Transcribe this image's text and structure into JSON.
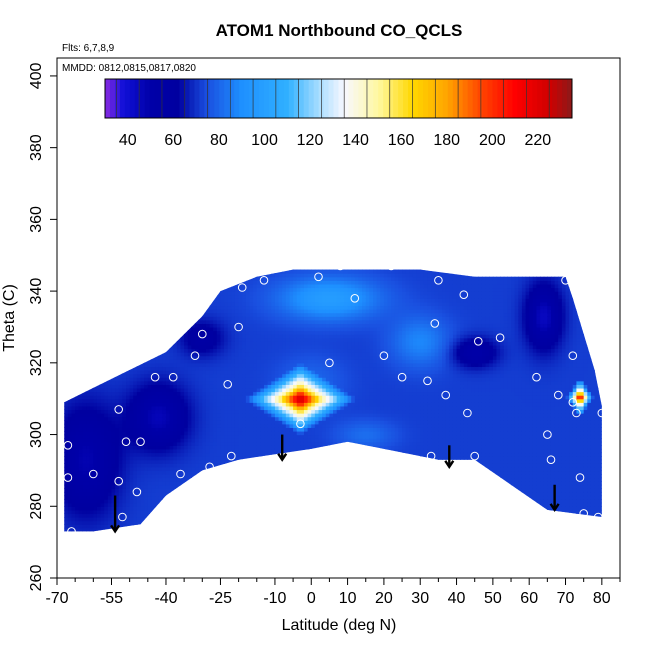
{
  "chart_data": {
    "type": "heatmap",
    "title": "ATOM1 Northbound CO_QCLS",
    "annotations": [
      "Flts: 6,7,8,9",
      "MMDD: 0812,0815,0817,0820"
    ],
    "xlabel": "Latitude (deg N)",
    "ylabel": "Theta (C)",
    "xlim": [
      -70,
      85
    ],
    "ylim": [
      260,
      405
    ],
    "x_ticks": [
      -70,
      -55,
      -40,
      -25,
      -10,
      0,
      10,
      20,
      30,
      40,
      50,
      60,
      70,
      80
    ],
    "x_tick_labels": [
      "-70",
      "-55",
      "-40",
      "-25",
      "-10",
      "0",
      "10",
      "20",
      "30",
      "40",
      "50",
      "60",
      "70",
      "80"
    ],
    "x_minor_step": 5,
    "y_ticks": [
      260,
      280,
      300,
      320,
      340,
      360,
      380,
      400
    ],
    "y_tick_labels": [
      "260",
      "280",
      "300",
      "320",
      "340",
      "360",
      "380",
      "400"
    ],
    "colorbar": {
      "range": [
        30,
        235
      ],
      "ticks": [
        40,
        60,
        80,
        100,
        120,
        140,
        160,
        180,
        200,
        220
      ],
      "tick_labels": [
        "40",
        "60",
        "80",
        "100",
        "120",
        "140",
        "160",
        "180",
        "200",
        "220"
      ],
      "colors": [
        [
          30,
          "#8a2be2"
        ],
        [
          38,
          "#1010d8"
        ],
        [
          50,
          "#0000a8"
        ],
        [
          62,
          "#0000a0"
        ],
        [
          75,
          "#1a50e0"
        ],
        [
          90,
          "#1e90ff"
        ],
        [
          110,
          "#30b0ff"
        ],
        [
          125,
          "#b0e0ff"
        ],
        [
          135,
          "#f8f8ff"
        ],
        [
          150,
          "#fff8a0"
        ],
        [
          165,
          "#ffd700"
        ],
        [
          180,
          "#ffa500"
        ],
        [
          195,
          "#ff4500"
        ],
        [
          210,
          "#ff0000"
        ],
        [
          225,
          "#d00000"
        ],
        [
          235,
          "#8b1a1a"
        ]
      ]
    },
    "region_polygon": [
      [
        -68,
        273
      ],
      [
        -68,
        309
      ],
      [
        -60,
        313
      ],
      [
        -50,
        318
      ],
      [
        -40,
        323
      ],
      [
        -30,
        333
      ],
      [
        -25,
        340
      ],
      [
        -15,
        344
      ],
      [
        -5,
        346
      ],
      [
        5,
        346
      ],
      [
        15,
        346
      ],
      [
        30,
        346
      ],
      [
        45,
        344
      ],
      [
        60,
        344
      ],
      [
        70,
        344
      ],
      [
        72,
        338
      ],
      [
        75,
        328
      ],
      [
        78,
        318
      ],
      [
        80,
        308
      ],
      [
        80,
        277
      ],
      [
        65,
        279
      ],
      [
        45,
        293
      ],
      [
        35,
        293
      ],
      [
        20,
        296
      ],
      [
        10,
        298
      ],
      [
        0,
        296
      ],
      [
        -20,
        293
      ],
      [
        -30,
        290
      ],
      [
        -40,
        283
      ],
      [
        -47,
        275
      ],
      [
        -60,
        273
      ]
    ],
    "field": {
      "base": 72,
      "features": [
        {
          "x": -62,
          "y": 293,
          "sx": 9,
          "sy": 15,
          "amp": -24
        },
        {
          "x": -42,
          "y": 305,
          "sx": 8,
          "sy": 9,
          "amp": -26
        },
        {
          "x": -30,
          "y": 327,
          "sx": 6,
          "sy": 5,
          "amp": -16
        },
        {
          "x": 5,
          "y": 338,
          "sx": 14,
          "sy": 6,
          "amp": 26
        },
        {
          "x": 30,
          "y": 326,
          "sx": 8,
          "sy": 7,
          "amp": 16
        },
        {
          "x": 45,
          "y": 323,
          "sx": 6,
          "sy": 4,
          "amp": -22
        },
        {
          "x": 64,
          "y": 333,
          "sx": 5,
          "sy": 9,
          "amp": -28
        },
        {
          "x": 0,
          "y": 315,
          "sx": 9,
          "sy": 7,
          "amp": 8
        },
        {
          "x": 15,
          "y": 300,
          "sx": 8,
          "sy": 4,
          "amp": 10
        }
      ],
      "hotspots": [
        {
          "cx": -3,
          "cy": 310,
          "rx": 6.5,
          "ry": 4.2,
          "peak": 235,
          "halo": 2.4
        },
        {
          "cx": 74,
          "cy": 310.5,
          "rx": 1.4,
          "ry": 2.2,
          "peak": 225,
          "halo": 2.6
        }
      ]
    },
    "sample_points": [
      [
        -67,
        297
      ],
      [
        -67,
        288
      ],
      [
        -66,
        273
      ],
      [
        -60,
        289
      ],
      [
        -53,
        307
      ],
      [
        -53,
        287
      ],
      [
        -52,
        277
      ],
      [
        -51,
        298
      ],
      [
        -47,
        298
      ],
      [
        -48,
        284
      ],
      [
        -43,
        316
      ],
      [
        -38,
        316
      ],
      [
        -36,
        289
      ],
      [
        -32,
        322
      ],
      [
        -30,
        328
      ],
      [
        -28,
        291
      ],
      [
        -23,
        314
      ],
      [
        -22,
        294
      ],
      [
        -20,
        330
      ],
      [
        -19,
        341
      ],
      [
        -13,
        343
      ],
      [
        -3,
        303
      ],
      [
        2,
        344
      ],
      [
        5,
        320
      ],
      [
        8,
        347
      ],
      [
        12,
        338
      ],
      [
        15,
        348
      ],
      [
        20,
        322
      ],
      [
        22,
        347
      ],
      [
        25,
        316
      ],
      [
        32,
        315
      ],
      [
        33,
        294
      ],
      [
        34,
        331
      ],
      [
        35,
        343
      ],
      [
        37,
        311
      ],
      [
        42,
        339
      ],
      [
        43,
        306
      ],
      [
        45,
        294
      ],
      [
        46,
        326
      ],
      [
        52,
        327
      ],
      [
        62,
        316
      ],
      [
        65,
        300
      ],
      [
        66,
        293
      ],
      [
        68,
        311
      ],
      [
        70,
        343
      ],
      [
        72,
        322
      ],
      [
        72,
        309
      ],
      [
        73,
        306
      ],
      [
        74,
        288
      ],
      [
        75,
        278
      ],
      [
        79,
        277
      ],
      [
        80,
        306
      ]
    ],
    "arrows": [
      {
        "x": -54,
        "y_start": 283,
        "y_end": 273
      },
      {
        "x": -8,
        "y_start": 300,
        "y_end": 293
      },
      {
        "x": 38,
        "y_start": 297,
        "y_end": 291
      },
      {
        "x": 67,
        "y_start": 286,
        "y_end": 279
      }
    ]
  }
}
